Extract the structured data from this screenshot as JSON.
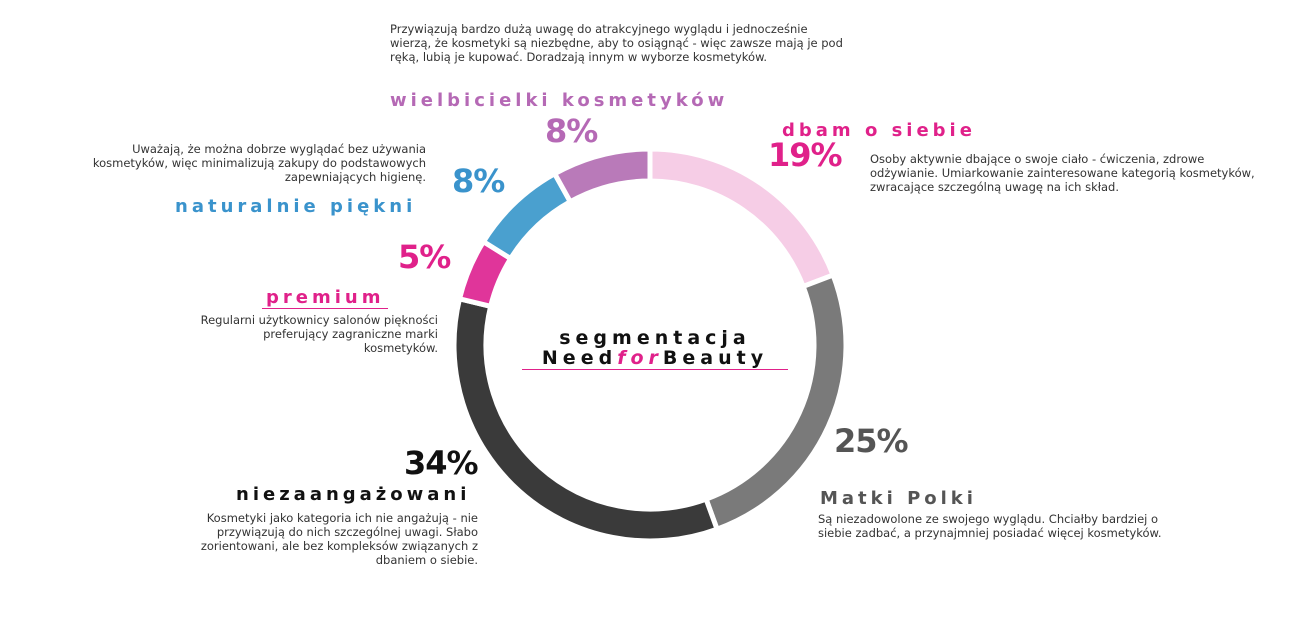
{
  "chart_data": {
    "type": "pie",
    "center": {
      "line1": "segmentacja",
      "line2a": "Need",
      "line2b": "for",
      "line2c": "Beauty"
    },
    "segments": [
      {
        "name": "dbam o siebie",
        "percent_label": "19%",
        "value": 19,
        "color": "#f6cde6",
        "label_color": "#e0218a",
        "pct_color": "#e0218a",
        "description": "Osoby aktywnie dbające o swoje ciało - ćwiczenia, zdrowe odżywianie. Umiarkowanie zainteresowane kategorią kosmetyków, zwracające szczególną uwagę na ich skład."
      },
      {
        "name": "Matki Polki",
        "percent_label": "25%",
        "value": 25,
        "color": "#7a7a7a",
        "label_color": "#555555",
        "pct_color": "#555555",
        "description": "Są niezadowolone ze swojego wyglądu. Chciałby bardziej o siebie zadbać, a przynajmniej posiadać więcej kosmetyków."
      },
      {
        "name": "niezaangażowani",
        "percent_label": "34%",
        "value": 34,
        "color": "#3a3a3a",
        "label_color": "#111111",
        "pct_color": "#111111",
        "description": "Kosmetyki jako kategoria ich nie angażują - nie przywiązują do nich szczególnej uwagi. Słabo zorientowani, ale bez kompleksów związanych z dbaniem o siebie."
      },
      {
        "name": "premium",
        "percent_label": "5%",
        "value": 5,
        "color": "#e0359a",
        "label_color": "#e0218a",
        "pct_color": "#e0218a",
        "description": "Regularni użytkownicy salonów piękności preferujący zagraniczne marki kosmetyków."
      },
      {
        "name": "naturalnie piękni",
        "percent_label": "8%",
        "value": 8,
        "color": "#4aa0cf",
        "label_color": "#3a93cc",
        "pct_color": "#3a93cc",
        "description": "Uważają, że można  dobrze wyglądać bez używania kosmetyków, więc minimalizują zakupy do podstawowych zapewniających higienę."
      },
      {
        "name": "wielbicielki kosmetyków",
        "percent_label": "8%",
        "value": 8,
        "color": "#b97ab9",
        "label_color": "#b569b5",
        "pct_color": "#b569b5",
        "description": "Przywiązują bardzo dużą uwagę do atrakcyjnego wyglądu i jednocześnie wierzą, że kosmetyki są niezbędne, aby to osiągnąć - więc zawsze mają je pod ręką, lubią je kupować. Doradzają innym w wyborze kosmetyków."
      }
    ]
  }
}
